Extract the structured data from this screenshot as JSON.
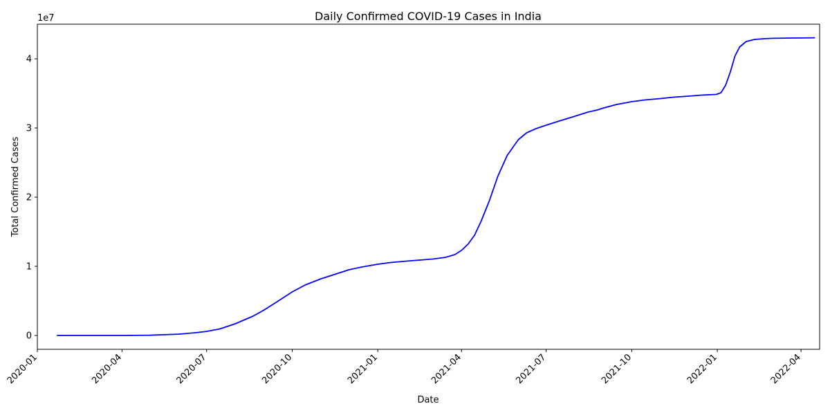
{
  "chart_data": {
    "type": "line",
    "title": "Daily Confirmed COVID-19 Cases in India",
    "xlabel": "Date",
    "ylabel": "Total Confirmed Cases",
    "y_offset_label": "1e7",
    "y_multiplier": 10000000,
    "xlim": [
      "2020-01-01",
      "2022-04-21"
    ],
    "ylim": [
      -2000000,
      45000000
    ],
    "x_ticks": [
      "2020-01-01",
      "2020-04-01",
      "2020-07-01",
      "2020-10-01",
      "2021-01-01",
      "2021-04-01",
      "2021-07-01",
      "2021-10-01",
      "2022-01-01",
      "2022-04-01"
    ],
    "x_tick_labels": [
      "2020-01",
      "2020-04",
      "2020-07",
      "2020-10",
      "2021-01",
      "2021-04",
      "2021-07",
      "2021-10",
      "2022-01",
      "2022-04"
    ],
    "y_ticks": [
      0,
      10000000,
      20000000,
      30000000,
      40000000
    ],
    "y_tick_labels": [
      "0",
      "1",
      "2",
      "3",
      "4"
    ],
    "grid": false,
    "line_color": "#0000ff",
    "series": [
      {
        "x": [
          "2020-01-22",
          "2020-03-01",
          "2020-04-01",
          "2020-05-01",
          "2020-06-01",
          "2020-06-20",
          "2020-07-01",
          "2020-07-15",
          "2020-08-01",
          "2020-08-20",
          "2020-09-01",
          "2020-09-15",
          "2020-10-01",
          "2020-10-15",
          "2020-11-01",
          "2020-11-15",
          "2020-12-01",
          "2020-12-15",
          "2021-01-01",
          "2021-01-15",
          "2021-02-01",
          "2021-02-15",
          "2021-03-01",
          "2021-03-15",
          "2021-03-25",
          "2021-04-01",
          "2021-04-08",
          "2021-04-15",
          "2021-04-22",
          "2021-05-01",
          "2021-05-10",
          "2021-05-20",
          "2021-06-01",
          "2021-06-10",
          "2021-06-20",
          "2021-07-01",
          "2021-07-15",
          "2021-08-01",
          "2021-08-15",
          "2021-08-25",
          "2021-09-01",
          "2021-09-15",
          "2021-10-01",
          "2021-10-15",
          "2021-11-01",
          "2021-11-15",
          "2021-12-01",
          "2021-12-15",
          "2021-12-31",
          "2022-01-05",
          "2022-01-10",
          "2022-01-15",
          "2022-01-20",
          "2022-01-25",
          "2022-02-01",
          "2022-02-10",
          "2022-02-20",
          "2022-03-01",
          "2022-03-15",
          "2022-04-01",
          "2022-04-16"
        ],
        "values": [
          0,
          3000,
          1600,
          35000,
          190000,
          410000,
          585000,
          940000,
          1700000,
          2800000,
          3700000,
          4900000,
          6300000,
          7300000,
          8200000,
          8800000,
          9500000,
          9900000,
          10300000,
          10550000,
          10750000,
          10900000,
          11050000,
          11300000,
          11700000,
          12300000,
          13200000,
          14500000,
          16500000,
          19500000,
          23000000,
          26000000,
          28300000,
          29300000,
          29900000,
          30400000,
          31000000,
          31700000,
          32300000,
          32600000,
          32900000,
          33400000,
          33800000,
          34050000,
          34250000,
          34450000,
          34600000,
          34750000,
          34850000,
          35100000,
          36200000,
          38100000,
          40400000,
          41700000,
          42500000,
          42800000,
          42900000,
          42960000,
          42990000,
          43010000,
          43040000
        ]
      }
    ]
  }
}
